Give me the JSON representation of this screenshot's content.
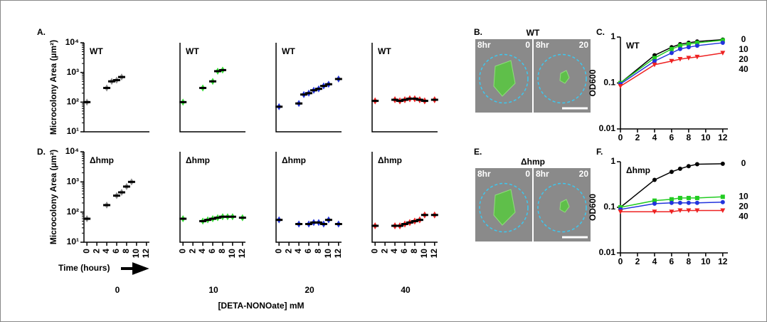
{
  "figure": {
    "letters": [
      "A.",
      "B.",
      "C.",
      "D.",
      "E.",
      "F."
    ],
    "time_label": "Time (hours)",
    "concentrations": [
      "0",
      "10",
      "20",
      "40"
    ],
    "concentration_label": "[DETA-NONOate] mM",
    "images": [
      {
        "title": "WT",
        "left": [
          "8hr",
          "0"
        ],
        "right": [
          "8hr",
          "20"
        ]
      },
      {
        "title": "Δhmp",
        "left": [
          "8hr",
          "0"
        ],
        "right": [
          "8hr",
          "20"
        ]
      }
    ]
  },
  "chart_data": [
    {
      "type": "scatter",
      "title": "WT",
      "y_label": "Microcolony Area (µm²)",
      "log_y": true,
      "color": "#888888",
      "x": [
        0,
        4,
        5,
        6,
        7
      ],
      "values": [
        100,
        300,
        500,
        550,
        700
      ],
      "xlim": [
        -0.6,
        12.6
      ],
      "ylim": [
        10,
        10000
      ],
      "yticks": [
        {
          "value": 10,
          "label": "10¹"
        },
        {
          "value": 100,
          "label": "10²"
        },
        {
          "value": 1000,
          "label": "10³"
        },
        {
          "value": 10000,
          "label": "10⁴"
        }
      ]
    },
    {
      "type": "scatter",
      "title": "WT",
      "log_y": true,
      "color": "#33dd33",
      "x": [
        0,
        4,
        6,
        7,
        8
      ],
      "values": [
        100,
        300,
        500,
        1100,
        1200
      ],
      "xlim": [
        -0.6,
        12.6
      ],
      "ylim": [
        10,
        10000
      ]
    },
    {
      "type": "scatter",
      "title": "WT",
      "log_y": true,
      "color": "#2233dd",
      "x": [
        0,
        4,
        5,
        6,
        7,
        8,
        9,
        10,
        12
      ],
      "values": [
        70,
        90,
        180,
        200,
        250,
        280,
        350,
        400,
        600
      ],
      "xlim": [
        -0.6,
        12.6
      ],
      "ylim": [
        10,
        10000
      ]
    },
    {
      "type": "scatter",
      "title": "WT",
      "log_y": true,
      "color": "#ee2222",
      "x": [
        0,
        4,
        5,
        6,
        7,
        8,
        9,
        10,
        12
      ],
      "values": [
        110,
        120,
        110,
        120,
        130,
        130,
        120,
        110,
        120
      ],
      "xlim": [
        -0.6,
        12.6
      ],
      "ylim": [
        10,
        10000
      ]
    },
    {
      "type": "scatter",
      "title": "Δhmp",
      "y_label": "Microcolony Area (µm²)",
      "log_y": true,
      "color": "#888888",
      "x": [
        0,
        4,
        6,
        7,
        8,
        9
      ],
      "values": [
        60,
        170,
        350,
        450,
        700,
        1000
      ],
      "xlim": [
        -0.6,
        12.6
      ],
      "ylim": [
        10,
        10000
      ],
      "yticks": [
        {
          "value": 10,
          "label": "10¹"
        },
        {
          "value": 100,
          "label": "10²"
        },
        {
          "value": 1000,
          "label": "10³"
        },
        {
          "value": 10000,
          "label": "10⁴"
        }
      ],
      "xticks": [
        0,
        2,
        4,
        6,
        8,
        10,
        12
      ]
    },
    {
      "type": "scatter",
      "title": "Δhmp",
      "log_y": true,
      "color": "#33dd33",
      "x": [
        0,
        4,
        5,
        6,
        7,
        8,
        9,
        10,
        12
      ],
      "values": [
        60,
        50,
        55,
        60,
        65,
        70,
        70,
        70,
        65
      ],
      "xlim": [
        -0.6,
        12.6
      ],
      "ylim": [
        10,
        10000
      ],
      "xticks": [
        0,
        2,
        4,
        6,
        8,
        10,
        12
      ]
    },
    {
      "type": "scatter",
      "title": "Δhmp",
      "log_y": true,
      "color": "#2233dd",
      "x": [
        0,
        4,
        6,
        7,
        8,
        9,
        10,
        12
      ],
      "values": [
        55,
        40,
        40,
        45,
        45,
        40,
        55,
        40
      ],
      "xlim": [
        -0.6,
        12.6
      ],
      "ylim": [
        10,
        10000
      ],
      "xticks": [
        0,
        2,
        4,
        6,
        8,
        10,
        12
      ]
    },
    {
      "type": "scatter",
      "title": "Δhmp",
      "log_y": true,
      "color": "#ee2222",
      "x": [
        0,
        4,
        5,
        6,
        7,
        8,
        9,
        10,
        12
      ],
      "values": [
        35,
        35,
        35,
        40,
        45,
        50,
        55,
        80,
        80
      ],
      "xlim": [
        -0.6,
        12.6
      ],
      "ylim": [
        10,
        10000
      ],
      "xticks": [
        0,
        2,
        4,
        6,
        8,
        10,
        12
      ]
    },
    {
      "type": "line",
      "title": "WT",
      "y_label": "OD600",
      "log_y": true,
      "x": [
        0,
        4,
        6,
        7,
        8,
        9,
        12
      ],
      "xlim": [
        0,
        12.6
      ],
      "ylim": [
        0.01,
        1
      ],
      "xticks": [
        0,
        2,
        4,
        6,
        8,
        10,
        12
      ],
      "yticks": [
        0.01,
        0.1,
        1
      ],
      "series": [
        {
          "name": "0",
          "color": "#000000",
          "marker": "circle",
          "values": [
            0.1,
            0.4,
            0.6,
            0.7,
            0.75,
            0.8,
            0.88
          ]
        },
        {
          "name": "10",
          "color": "#22cc22",
          "marker": "square",
          "values": [
            0.1,
            0.35,
            0.55,
            0.65,
            0.7,
            0.75,
            0.85
          ]
        },
        {
          "name": "20",
          "color": "#2233dd",
          "marker": "circle",
          "values": [
            0.095,
            0.3,
            0.45,
            0.55,
            0.6,
            0.65,
            0.75
          ]
        },
        {
          "name": "40",
          "color": "#ee2222",
          "marker": "triangle",
          "values": [
            0.085,
            0.25,
            0.3,
            0.33,
            0.35,
            0.37,
            0.45
          ]
        }
      ]
    },
    {
      "type": "line",
      "title": "Δhmp",
      "y_label": "OD600",
      "log_y": true,
      "x": [
        0,
        4,
        6,
        7,
        8,
        9,
        12
      ],
      "xlim": [
        0,
        12.6
      ],
      "ylim": [
        0.01,
        1
      ],
      "xticks": [
        0,
        2,
        4,
        6,
        8,
        10,
        12
      ],
      "yticks": [
        0.01,
        0.1,
        1
      ],
      "series": [
        {
          "name": "0",
          "color": "#000000",
          "marker": "circle",
          "values": [
            0.1,
            0.4,
            0.6,
            0.7,
            0.8,
            0.88,
            0.9
          ]
        },
        {
          "name": "10",
          "color": "#22cc22",
          "marker": "square",
          "values": [
            0.1,
            0.14,
            0.15,
            0.16,
            0.16,
            0.16,
            0.17
          ]
        },
        {
          "name": "20",
          "color": "#2233dd",
          "marker": "circle",
          "values": [
            0.09,
            0.12,
            0.125,
            0.125,
            0.125,
            0.125,
            0.13
          ]
        },
        {
          "name": "40",
          "color": "#ee2222",
          "marker": "triangle",
          "values": [
            0.08,
            0.08,
            0.08,
            0.085,
            0.085,
            0.085,
            0.085
          ]
        }
      ]
    }
  ]
}
